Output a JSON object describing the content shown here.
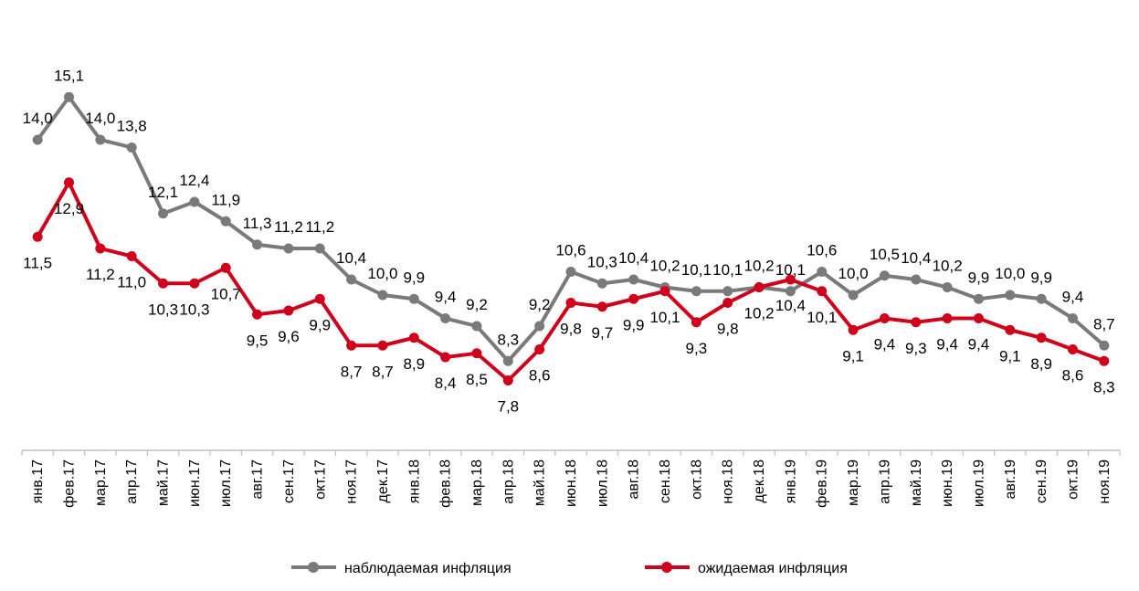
{
  "chart_data": {
    "type": "line",
    "x": [
      "янв.17",
      "фев.17",
      "мар.17",
      "апр.17",
      "май.17",
      "июн.17",
      "июл.17",
      "авг.17",
      "сен.17",
      "окт.17",
      "ноя.17",
      "дек.17",
      "янв.18",
      "фев.18",
      "мар.18",
      "апр.18",
      "май.18",
      "июн.18",
      "июл.18",
      "авг.18",
      "сен.18",
      "окт.18",
      "ноя.18",
      "дек.18",
      "янв.19",
      "фев.19",
      "мар.19",
      "апр.19",
      "май.19",
      "июн.19",
      "июл.19",
      "авг.19",
      "сен.19",
      "окт.19",
      "ноя.19"
    ],
    "series": [
      {
        "name": "наблюдаемая инфляция",
        "color": "#7a7a7a",
        "values": [
          14.0,
          15.1,
          14.0,
          13.8,
          12.1,
          12.4,
          11.9,
          11.3,
          11.2,
          11.2,
          10.4,
          10.0,
          9.9,
          9.4,
          9.2,
          8.3,
          9.2,
          10.6,
          10.3,
          10.4,
          10.2,
          10.1,
          10.1,
          10.2,
          10.1,
          10.6,
          10.0,
          10.5,
          10.4,
          10.2,
          9.9,
          10.0,
          9.9,
          9.4,
          8.7
        ],
        "labels": [
          "14,0",
          "15,1",
          "14,0",
          "13,8",
          "12,1",
          "12,4",
          "11,9",
          "11,3",
          "11,2",
          "11,2",
          "10,4",
          "10,0",
          "9,9",
          "9,4",
          "9,2",
          "8,3",
          "9,2",
          "10,6",
          "10,3",
          "10,4",
          "10,2",
          "10,1",
          "10,1",
          "10,2",
          "10,1",
          "10,6",
          "10,0",
          "10,5",
          "10,4",
          "10,2",
          "9,9",
          "10,0",
          "9,9",
          "9,4",
          "8,7"
        ]
      },
      {
        "name": "ожидаемая инфляция",
        "color": "#d0021b",
        "values": [
          11.5,
          12.9,
          11.2,
          11.0,
          10.3,
          10.3,
          10.7,
          9.5,
          9.6,
          9.9,
          8.7,
          8.7,
          8.9,
          8.4,
          8.5,
          7.8,
          8.6,
          9.8,
          9.7,
          9.9,
          10.1,
          9.3,
          9.8,
          10.2,
          10.4,
          10.1,
          9.1,
          9.4,
          9.3,
          9.4,
          9.4,
          9.1,
          8.9,
          8.6,
          8.3
        ],
        "labels": [
          "11,5",
          "12,9",
          "11,2",
          "11,0",
          "10,3",
          "10,3",
          "10,7",
          "9,5",
          "9,6",
          "9,9",
          "8,7",
          "8,7",
          "8,9",
          "8,4",
          "8,5",
          "7,8",
          "8,6",
          "9,8",
          "9,7",
          "9,9",
          "10,1",
          "9,3",
          "9,8",
          "10,2",
          "10,4",
          "10,1",
          "9,1",
          "9,4",
          "9,3",
          "9,4",
          "9,4",
          "9,1",
          "8,9",
          "8,6",
          "8,3"
        ]
      }
    ],
    "ylim": [
      6.0,
      17.6
    ],
    "grid": false,
    "legend_position": "bottom"
  },
  "legend": {
    "observed": "наблюдаемая инфляция",
    "expected": "ожидаемая инфляция"
  }
}
